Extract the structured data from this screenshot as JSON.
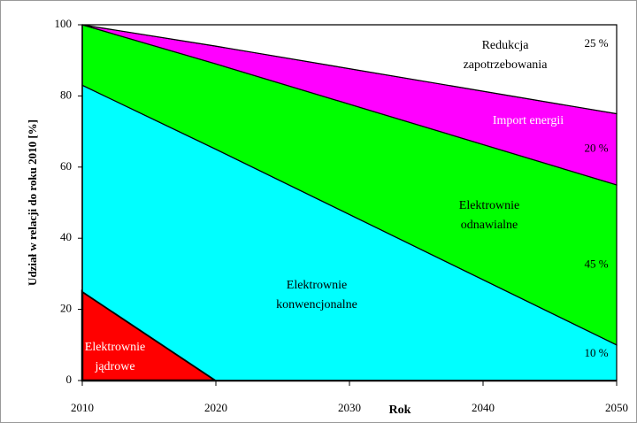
{
  "chart_data": {
    "type": "stacked-area",
    "x_label": "Rok",
    "y_label": "Udział w relacji do roku 2010 [%]",
    "x": [
      2010,
      2020,
      2050
    ],
    "xlim": [
      2010,
      2050
    ],
    "xticks": [
      2010,
      2020,
      2030,
      2040,
      2050
    ],
    "ylim": [
      0,
      100
    ],
    "yticks": [
      0,
      20,
      40,
      60,
      80,
      100
    ],
    "series": [
      {
        "name": "Elektrownie jądrowe",
        "color": "#ff0000",
        "values": [
          25,
          0,
          0
        ]
      },
      {
        "name": "Elektrownie konwencjonalne",
        "color": "#00ffff",
        "values": [
          58,
          65,
          10
        ],
        "value_labels": [
          null,
          null,
          "10 %"
        ]
      },
      {
        "name": "Elektrownie odnawialne",
        "color": "#00ff00",
        "values": [
          17,
          24,
          45
        ],
        "value_labels": [
          null,
          null,
          "45 %"
        ]
      },
      {
        "name": "Import energii",
        "color": "#ff00ff",
        "values": [
          0,
          5,
          20
        ],
        "value_labels": [
          null,
          null,
          "20 %"
        ]
      },
      {
        "name": "Redukcja zapotrzebowania",
        "color": "#ffffff",
        "values": [
          0,
          6,
          25
        ],
        "value_labels": [
          null,
          null,
          "25 %"
        ]
      }
    ]
  }
}
